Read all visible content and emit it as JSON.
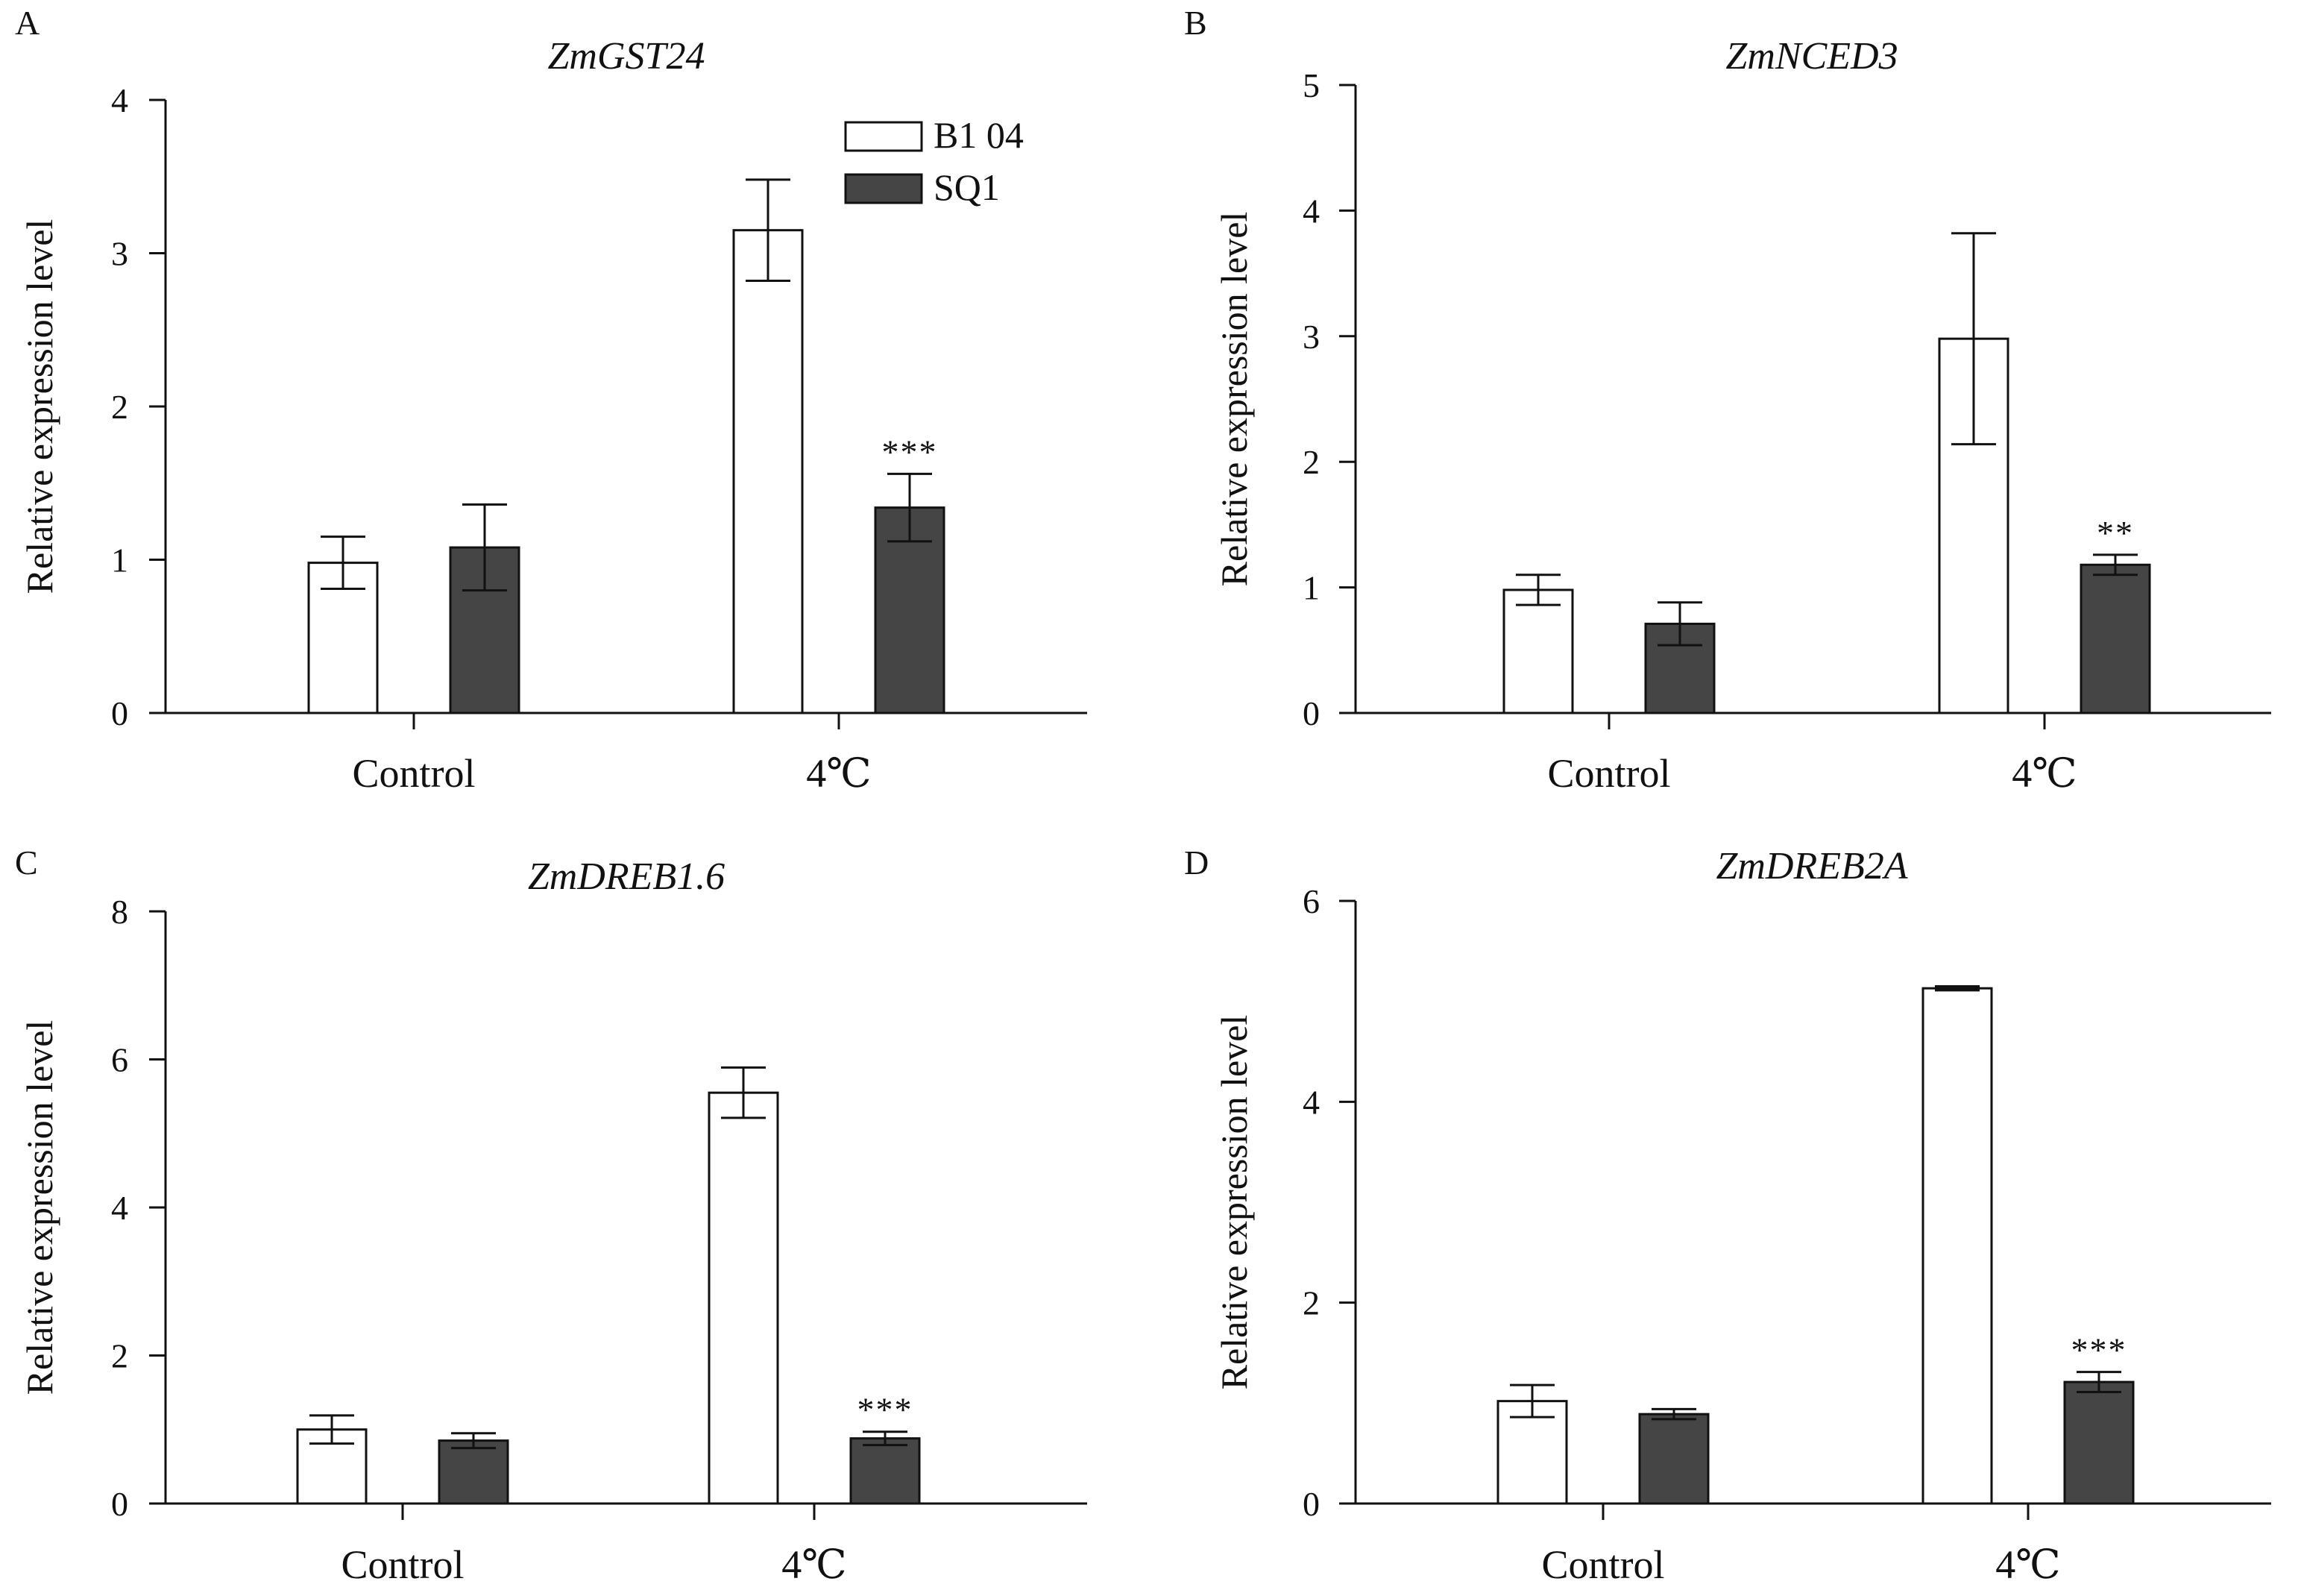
{
  "colors": {
    "B104": "#ffffff",
    "SQ1": "#454545",
    "stroke": "#111111"
  },
  "legend": {
    "entries": [
      {
        "series": "B104",
        "label": "B1 04"
      },
      {
        "series": "SQ1",
        "label": "SQ1"
      }
    ]
  },
  "chart_data": [
    {
      "panel": "A",
      "type": "bar",
      "title": "ZmGST24",
      "ylabel": "Relative expression level",
      "ylim": [
        0,
        4
      ],
      "yticks": [
        0,
        1,
        2,
        3,
        4
      ],
      "categories": [
        "Control",
        "4℃"
      ],
      "series": [
        {
          "name": "B104",
          "values": [
            0.98,
            3.15
          ],
          "errors": [
            0.17,
            0.33
          ]
        },
        {
          "name": "SQ1",
          "values": [
            1.08,
            1.34
          ],
          "errors": [
            0.28,
            0.22
          ]
        }
      ],
      "significance": [
        {
          "category": 1,
          "series": 1,
          "label": "***"
        }
      ]
    },
    {
      "panel": "B",
      "type": "bar",
      "title": "ZmNCED3",
      "ylabel": "Relative expression level",
      "ylim": [
        0,
        5
      ],
      "yticks": [
        0,
        1,
        2,
        3,
        4,
        5
      ],
      "categories": [
        "Control",
        "4℃"
      ],
      "series": [
        {
          "name": "B104",
          "values": [
            0.98,
            2.98
          ],
          "errors": [
            0.12,
            0.84
          ]
        },
        {
          "name": "SQ1",
          "values": [
            0.71,
            1.18
          ],
          "errors": [
            0.17,
            0.08
          ]
        }
      ],
      "significance": [
        {
          "category": 1,
          "series": 1,
          "label": "**"
        }
      ]
    },
    {
      "panel": "C",
      "type": "bar",
      "title": "ZmDREB1.6",
      "ylabel": "Relative expression level",
      "ylim": [
        0,
        8
      ],
      "yticks": [
        0,
        2,
        4,
        6,
        8
      ],
      "categories": [
        "Control",
        "4℃"
      ],
      "series": [
        {
          "name": "B104",
          "values": [
            1.0,
            5.55
          ],
          "errors": [
            0.19,
            0.34
          ]
        },
        {
          "name": "SQ1",
          "values": [
            0.85,
            0.88
          ],
          "errors": [
            0.1,
            0.09
          ]
        }
      ],
      "significance": [
        {
          "category": 1,
          "series": 1,
          "label": "***"
        }
      ]
    },
    {
      "panel": "D",
      "type": "bar",
      "title": "ZmDREB2A",
      "ylabel": "Relative expression level",
      "ylim": [
        0,
        6
      ],
      "yticks": [
        0,
        2,
        4,
        6
      ],
      "categories": [
        "Control",
        "4℃"
      ],
      "series": [
        {
          "name": "B104",
          "values": [
            1.02,
            5.13
          ],
          "errors": [
            0.16,
            0.02
          ]
        },
        {
          "name": "SQ1",
          "values": [
            0.89,
            1.21
          ],
          "errors": [
            0.05,
            0.1
          ]
        }
      ],
      "significance": [
        {
          "category": 1,
          "series": 1,
          "label": "***"
        }
      ]
    }
  ]
}
